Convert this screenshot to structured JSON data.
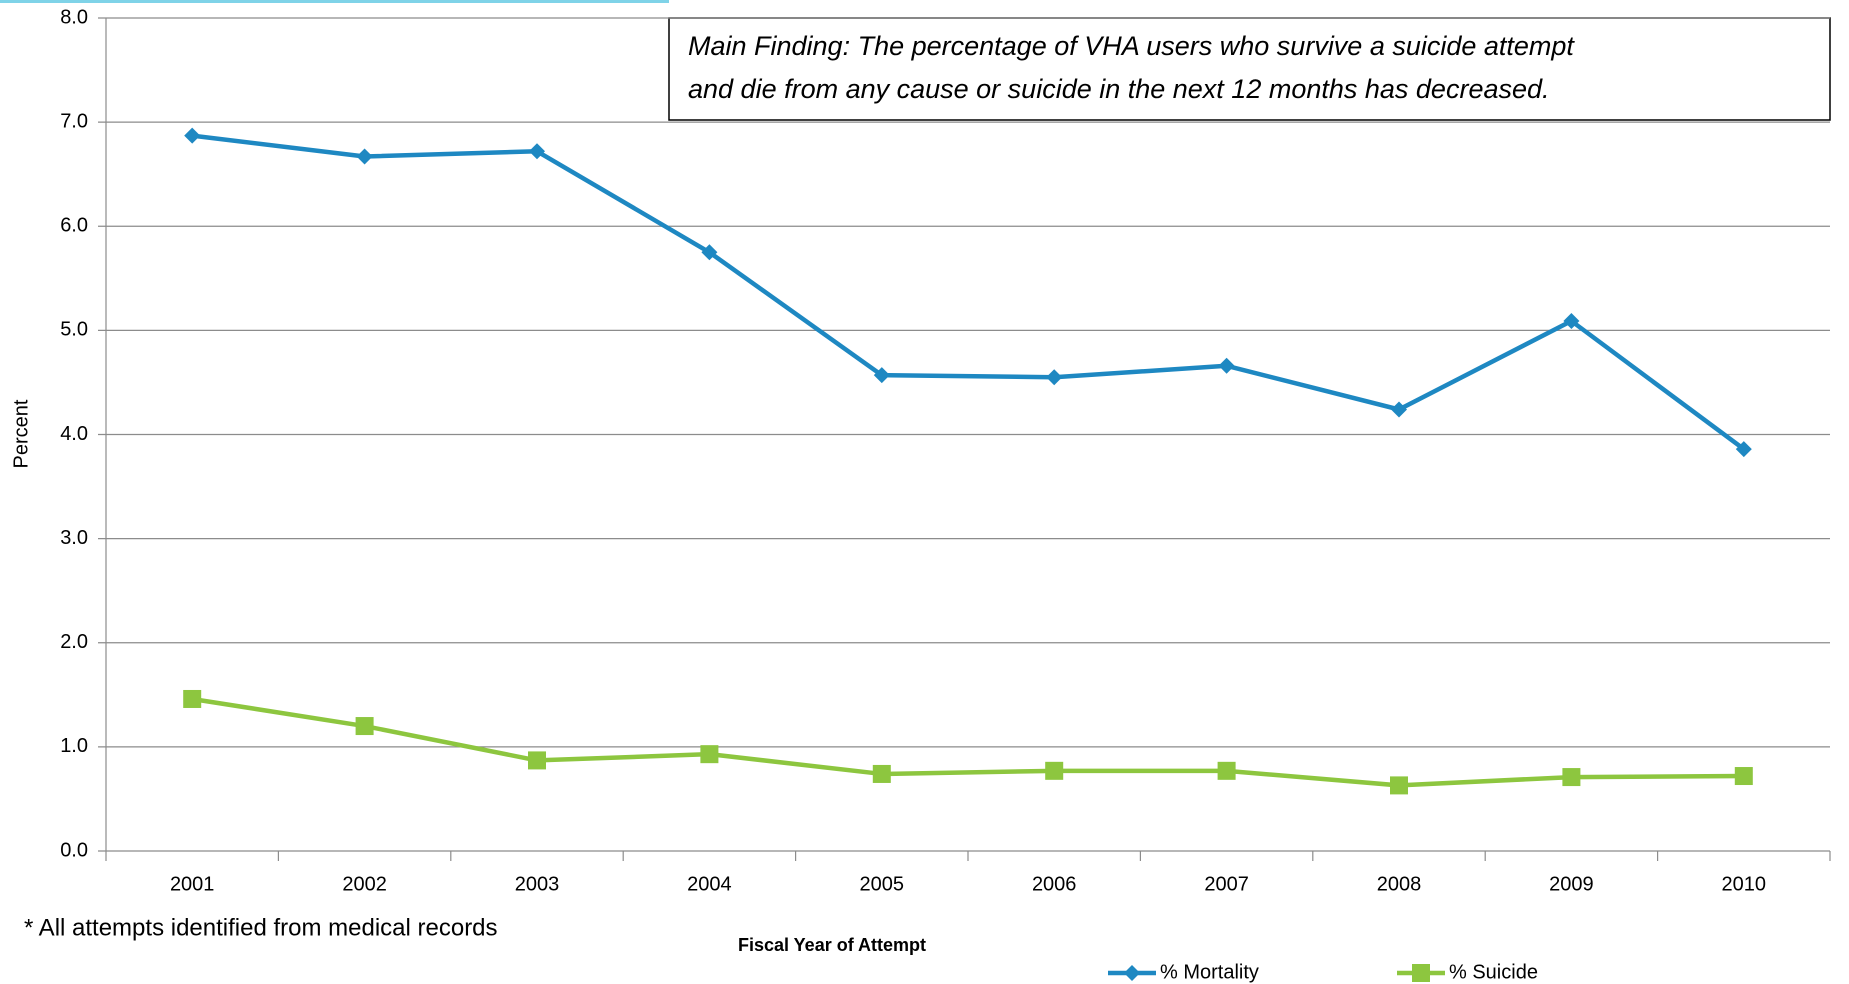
{
  "chart_data": {
    "type": "line",
    "annotation": [
      "Main Finding: The percentage of VHA users who survive a suicide attempt",
      "and die from any cause or suicide in the next 12 months has decreased."
    ],
    "ylabel": "Percent",
    "xlabel": "Fiscal Year of Attempt",
    "footnote": "* All attempts identified from medical records",
    "categories": [
      "2001",
      "2002",
      "2003",
      "2004",
      "2005",
      "2006",
      "2007",
      "2008",
      "2009",
      "2010"
    ],
    "series": [
      {
        "name": "% Mortality",
        "color": "#1e88c2",
        "marker": "diamond",
        "values": [
          6.87,
          6.67,
          6.72,
          5.75,
          4.57,
          4.55,
          4.66,
          4.24,
          5.09,
          3.86
        ]
      },
      {
        "name": "% Suicide",
        "color": "#8dc63f",
        "marker": "square",
        "values": [
          1.46,
          1.2,
          0.87,
          0.93,
          0.74,
          0.77,
          0.77,
          0.63,
          0.71,
          0.72
        ]
      }
    ],
    "ylim": [
      0,
      8
    ],
    "yticks": [
      {
        "value": 0,
        "label": "0.0"
      },
      {
        "value": 1,
        "label": "1.0"
      },
      {
        "value": 2,
        "label": "2.0"
      },
      {
        "value": 3,
        "label": "3.0"
      },
      {
        "value": 4,
        "label": "4.0"
      },
      {
        "value": 5,
        "label": "5.0"
      },
      {
        "value": 6,
        "label": "6.0"
      },
      {
        "value": 7,
        "label": "7.0"
      },
      {
        "value": 8,
        "label": "8.0"
      }
    ],
    "grid": true,
    "legend": "bottom"
  }
}
